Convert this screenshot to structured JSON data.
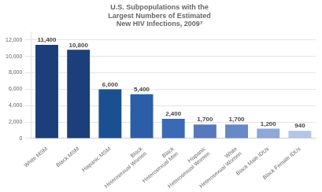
{
  "chart_data": {
    "type": "bar",
    "title": [
      "U.S. Subpopulations with the",
      "Largest Numbers of Estimated",
      "New HIV Infections, 2009⁷"
    ],
    "categories": [
      "White MSM",
      "Black MSM",
      "Hispanic MSM",
      "Black\nHeterosexual Women",
      "Black\nHeterosexual Men",
      "Hispanic\nHeterosexual Women",
      "White\nHeterosexual Women",
      "Black Male IDUs",
      "Black Female IDUs"
    ],
    "values": [
      11400,
      10800,
      6000,
      5400,
      2400,
      1700,
      1700,
      1200,
      940
    ],
    "value_labels": [
      "11,400",
      "10,800",
      "6,000",
      "5,400",
      "2,400",
      "1,700",
      "1,700",
      "1,200",
      "940"
    ],
    "colors": [
      "#1b3f7a",
      "#1b3f7a",
      "#1b5090",
      "#2a5fa8",
      "#3a6ab5",
      "#5878bc",
      "#6888c8",
      "#8fa8d5",
      "#b5c5e5"
    ],
    "ylim": [
      0,
      13000
    ],
    "yticks": [
      0,
      {
        "value": 2000,
        "label": "2,000"
      },
      {
        "value": 4000,
        "label": "4,000"
      },
      {
        "value": 6000,
        "label": "6,000"
      },
      {
        "value": 8000,
        "label": "8,000"
      },
      {
        "value": 10000,
        "label": "10,000"
      },
      {
        "value": 12000,
        "label": "12,000"
      }
    ],
    "grid": true,
    "data_labels": true
  }
}
